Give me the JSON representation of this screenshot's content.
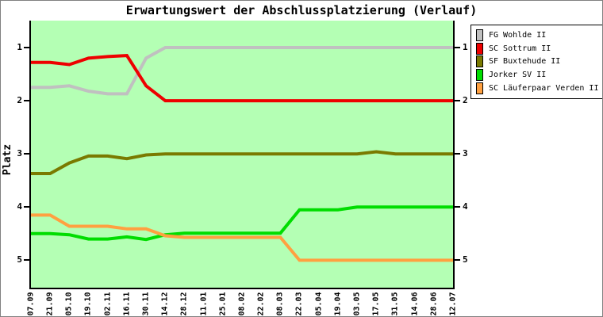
{
  "title": "Erwartungswert der Abschlussplatzierung (Verlauf)",
  "y_axis": {
    "label": "Platz",
    "ticks": [
      "1",
      "2",
      "3",
      "4",
      "5"
    ]
  },
  "colors": {
    "plot_background": "#b4ffb4",
    "axis": "#000000",
    "frame_border": "#808080",
    "legend_background": "#ffffff"
  },
  "chart_data": {
    "type": "line",
    "title": "Erwartungswert der Abschlussplatzierung (Verlauf)",
    "xlabel": "",
    "ylabel": "Platz",
    "y_axis_inverted": true,
    "ylim": [
      0.5,
      5.5
    ],
    "y_ticks": [
      1,
      2,
      3,
      4,
      5
    ],
    "grid": false,
    "legend_position": "top-right-outside",
    "categories": [
      "07.09",
      "21.09",
      "05.10",
      "19.10",
      "02.11",
      "16.11",
      "30.11",
      "14.12",
      "28.12",
      "11.01",
      "25.01",
      "08.02",
      "22.02",
      "08.03",
      "22.03",
      "05.04",
      "19.04",
      "03.05",
      "17.05",
      "31.05",
      "14.06",
      "28.06",
      "12.07"
    ],
    "series": [
      {
        "name": "FG Wohlde II",
        "color": "#c0c0c0",
        "values": [
          1.75,
          1.75,
          1.72,
          1.82,
          1.87,
          1.87,
          1.2,
          1.0,
          1.0,
          1.0,
          1.0,
          1.0,
          1.0,
          1.0,
          1.0,
          1.0,
          1.0,
          1.0,
          1.0,
          1.0,
          1.0,
          1.0,
          1.0
        ]
      },
      {
        "name": "SC Sottrum II",
        "color": "#ee0000",
        "values": [
          1.28,
          1.28,
          1.32,
          1.2,
          1.17,
          1.15,
          1.72,
          2.0,
          2.0,
          2.0,
          2.0,
          2.0,
          2.0,
          2.0,
          2.0,
          2.0,
          2.0,
          2.0,
          2.0,
          2.0,
          2.0,
          2.0,
          2.0
        ]
      },
      {
        "name": "SF Buxtehude II",
        "color": "#7a7a00",
        "values": [
          3.37,
          3.37,
          3.17,
          3.04,
          3.04,
          3.09,
          3.02,
          3.0,
          3.0,
          3.0,
          3.0,
          3.0,
          3.0,
          3.0,
          3.0,
          3.0,
          3.0,
          3.0,
          2.96,
          3.0,
          3.0,
          3.0,
          3.0
        ]
      },
      {
        "name": "Jorker SV II",
        "color": "#00dd00",
        "values": [
          4.5,
          4.5,
          4.52,
          4.6,
          4.6,
          4.56,
          4.61,
          4.52,
          4.49,
          4.49,
          4.49,
          4.49,
          4.49,
          4.49,
          4.05,
          4.05,
          4.05,
          4.0,
          4.0,
          4.0,
          4.0,
          4.0,
          4.0
        ]
      },
      {
        "name": "SC Läuferpaar Verden II",
        "color": "#ffa040",
        "values": [
          4.15,
          4.15,
          4.36,
          4.36,
          4.36,
          4.41,
          4.41,
          4.54,
          4.57,
          4.57,
          4.57,
          4.57,
          4.57,
          4.57,
          5.0,
          5.0,
          5.0,
          5.0,
          5.0,
          5.0,
          5.0,
          5.0,
          5.0
        ]
      }
    ]
  }
}
